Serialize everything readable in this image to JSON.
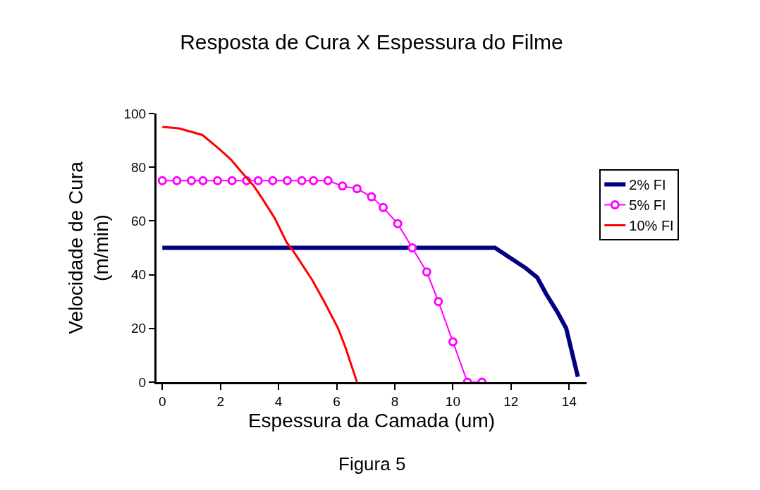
{
  "chart_data": {
    "type": "line",
    "title": "Resposta de Cura X Espessura do Filme",
    "xlabel": "Espessura da Camada (um)",
    "ylabel": "Velocidade de Cura\n(m/min)",
    "annotations": [
      "Figura 5"
    ],
    "xlim": [
      -0.2,
      14.6
    ],
    "xticks": [
      0,
      2,
      4,
      6,
      8,
      10,
      12,
      14
    ],
    "ylim": [
      0,
      100
    ],
    "yticks": [
      0,
      20,
      40,
      60,
      80,
      100
    ],
    "grid": false,
    "legend": "right",
    "series": [
      {
        "name": "2% FI",
        "color": "#000080",
        "marker": "none",
        "x": [
          0,
          11.45,
          12.5,
          12.9,
          13.2,
          13.6,
          13.9,
          14.1,
          14.3
        ],
        "values": [
          50,
          50,
          42.5,
          39,
          33,
          26,
          20,
          11,
          2
        ]
      },
      {
        "name": "5% FI",
        "color": "#ff00ff",
        "marker": "circle",
        "x": [
          0,
          0.5,
          1,
          1.4,
          1.9,
          2.4,
          2.9,
          3.3,
          3.8,
          4.3,
          4.8,
          5.2,
          5.7,
          6.2,
          6.7,
          7.2,
          7.6,
          8.1,
          8.6,
          9.1,
          9.5,
          10,
          10.5,
          11
        ],
        "values": [
          75,
          75,
          75,
          75,
          75,
          75,
          75,
          75,
          75,
          75,
          75,
          75,
          75,
          73,
          72,
          69,
          65,
          59,
          50,
          41,
          30,
          15,
          0,
          0
        ]
      },
      {
        "name": "10% FI",
        "color": "#ff0000",
        "marker": "none",
        "x": [
          0,
          0.56,
          1.38,
          1.94,
          2.35,
          2.74,
          3.15,
          3.46,
          3.87,
          4.28,
          4.52,
          5.16,
          5.57,
          6.05,
          6.3,
          6.7
        ],
        "values": [
          95,
          94.5,
          92,
          87,
          83,
          78,
          73,
          68,
          61,
          52,
          48.6,
          38,
          30,
          20,
          13,
          0
        ]
      }
    ]
  }
}
